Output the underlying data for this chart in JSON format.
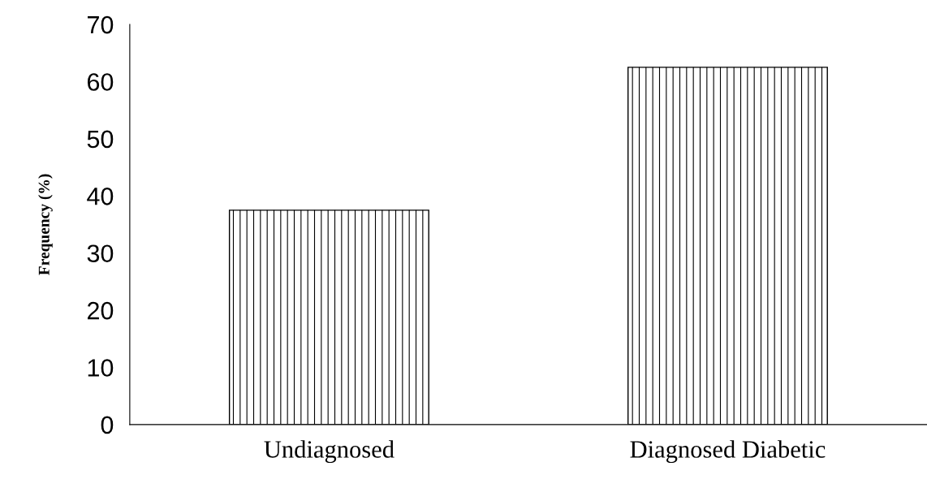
{
  "chart_data": {
    "type": "bar",
    "ylabel": "Frequency (%)",
    "categories": [
      "Undiagnosed",
      "Diagnosed Diabetic"
    ],
    "values": [
      37.5,
      62.5
    ],
    "color": "#000000",
    "ylim": [
      0,
      70
    ],
    "yticks": [
      0,
      10,
      20,
      30,
      40,
      50,
      60,
      70
    ],
    "grid": false,
    "legend": false
  }
}
